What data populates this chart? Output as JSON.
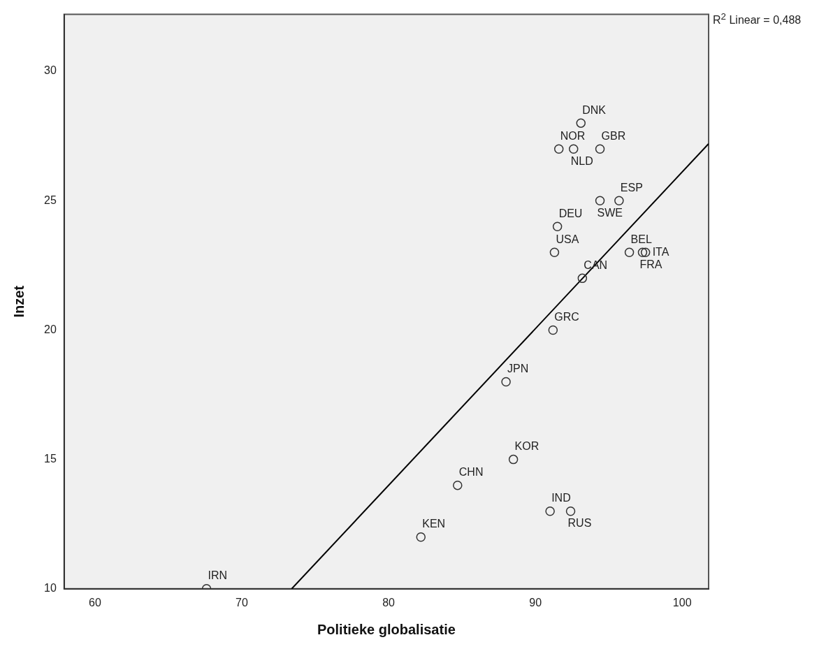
{
  "chart_data": {
    "type": "scatter",
    "xlabel": "Politieke globalisatie",
    "ylabel": "Inzet",
    "xlim": [
      57.9,
      101.8
    ],
    "ylim": [
      10,
      32.2
    ],
    "xticks": [
      60,
      70,
      80,
      90,
      100
    ],
    "yticks": [
      10,
      15,
      20,
      25,
      30
    ],
    "grid": false,
    "legend": false,
    "marker": "circle",
    "annotations": [
      "R$^{2}$ Linear = 0,488"
    ],
    "series": [
      {
        "color": "#333333",
        "x": [
          93.1,
          91.6,
          92.6,
          94.4,
          95.7,
          94.4,
          91.5,
          91.3,
          96.4,
          97.3,
          97.5,
          93.2,
          91.2,
          88.0,
          88.5,
          84.7,
          91.0,
          92.4,
          82.2,
          67.6
        ],
        "values": [
          28,
          27,
          27,
          27,
          25,
          25,
          24,
          23,
          23,
          23,
          23,
          22,
          20,
          18,
          15,
          14,
          13,
          13,
          12,
          10
        ],
        "value_labels": [
          "DNK",
          "NOR",
          "NLD",
          "GBR",
          "ESP",
          "SWE",
          "DEU",
          "USA",
          "BEL",
          "FRA",
          "ITA",
          "CAN",
          "GRC",
          "JPN",
          "KOR",
          "CHN",
          "IND",
          "RUS",
          "KEN",
          "IRN"
        ]
      },
      {
        "type": "line",
        "marker": "none",
        "color": "#000000",
        "x": [
          73.4,
          101.8
        ],
        "values": [
          10,
          27.2
        ]
      }
    ]
  }
}
